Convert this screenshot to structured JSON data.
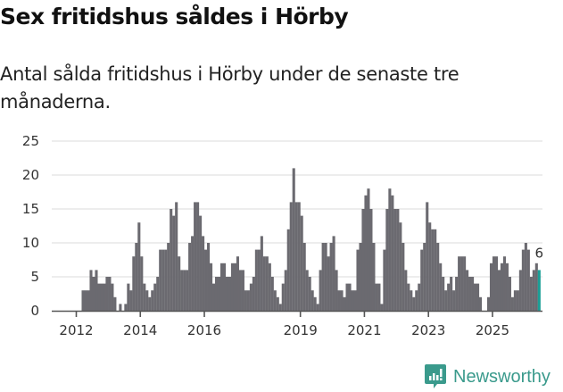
{
  "header": {
    "title": "Sex fritidshus såldes i Hörby",
    "subtitle": "Antal sålda fritidshus i Hörby under de senaste tre månaderna."
  },
  "brand": {
    "name": "Newsworthy",
    "icon": "bar-chart-speech-bubble-icon",
    "color": "#3a9a8c"
  },
  "chart_data": {
    "type": "bar",
    "title": "Sex fritidshus såldes i Hörby",
    "subtitle": "Antal sålda fritidshus i Hörby under de senaste tre månaderna.",
    "xlabel": "",
    "ylabel": "",
    "ylim": [
      0,
      25
    ],
    "yticks": [
      0,
      5,
      10,
      15,
      20,
      25
    ],
    "xticks": [
      "2012",
      "2014",
      "2016",
      "2019",
      "2021",
      "2023",
      "2025"
    ],
    "grid": true,
    "legend": null,
    "start": "2012-01",
    "frequency": "monthly",
    "bar_color": "#6b6a70",
    "highlight_color": "#1a9e96",
    "annotation": {
      "label": "6",
      "index": "last"
    },
    "values": [
      0,
      0,
      3,
      3,
      3,
      6,
      5,
      6,
      4,
      4,
      4,
      5,
      5,
      4,
      2,
      0,
      1,
      0,
      1,
      4,
      3,
      8,
      10,
      13,
      8,
      4,
      3,
      2,
      3,
      4,
      5,
      9,
      9,
      9,
      10,
      15,
      14,
      16,
      8,
      6,
      6,
      6,
      10,
      11,
      16,
      16,
      14,
      11,
      9,
      10,
      7,
      4,
      5,
      5,
      7,
      7,
      5,
      5,
      7,
      7,
      8,
      6,
      6,
      3,
      3,
      4,
      5,
      9,
      9,
      11,
      8,
      8,
      7,
      5,
      3,
      2,
      1,
      4,
      6,
      12,
      16,
      21,
      16,
      16,
      14,
      10,
      6,
      5,
      3,
      2,
      1,
      6,
      10,
      10,
      8,
      10,
      11,
      6,
      3,
      3,
      2,
      4,
      4,
      3,
      3,
      9,
      10,
      15,
      17,
      18,
      15,
      10,
      4,
      4,
      1,
      9,
      15,
      18,
      17,
      15,
      15,
      13,
      10,
      6,
      4,
      3,
      2,
      3,
      4,
      9,
      10,
      16,
      13,
      12,
      12,
      10,
      7,
      5,
      3,
      4,
      5,
      3,
      5,
      8,
      8,
      8,
      6,
      5,
      5,
      4,
      4,
      2,
      0,
      0,
      2,
      7,
      8,
      8,
      6,
      7,
      8,
      7,
      5,
      2,
      3,
      3,
      6,
      9,
      10,
      9,
      5,
      6,
      7,
      6
    ]
  }
}
